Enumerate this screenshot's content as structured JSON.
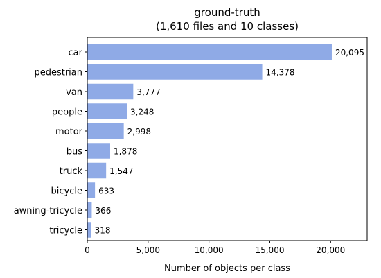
{
  "chart_data": {
    "type": "bar",
    "orientation": "horizontal",
    "title": "ground-truth",
    "subtitle": "(1,610 files and 10 classes)",
    "xlabel": "Number of objects per class",
    "ylabel": "",
    "categories": [
      "car",
      "pedestrian",
      "van",
      "people",
      "motor",
      "bus",
      "truck",
      "bicycle",
      "awning-tricycle",
      "tricycle"
    ],
    "values": [
      20095,
      14378,
      3777,
      3248,
      2998,
      1878,
      1547,
      633,
      366,
      318
    ],
    "value_labels": [
      "20,095",
      "14,378",
      "3,777",
      "3,248",
      "2,998",
      "1,878",
      "1,547",
      "633",
      "366",
      "318"
    ],
    "xticks": [
      0,
      5000,
      10000,
      15000,
      20000
    ],
    "xtick_labels": [
      "0",
      "5,000",
      "10,000",
      "15,000",
      "20,000"
    ],
    "xlim": [
      0,
      23000
    ],
    "grid": false,
    "bar_color": "#8faae6"
  }
}
